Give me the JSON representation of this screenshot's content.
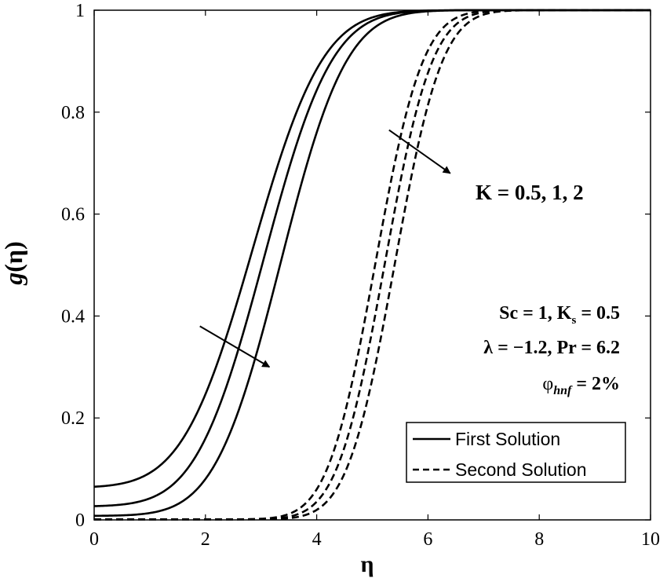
{
  "chart_data": {
    "type": "line",
    "title": "",
    "xlabel": "η",
    "ylabel_main": "g",
    "ylabel_arg": "(η)",
    "xlim": [
      0,
      10
    ],
    "ylim": [
      0,
      1
    ],
    "xticks": [
      0,
      2,
      4,
      6,
      8,
      10
    ],
    "yticks": [
      0,
      0.2,
      0.4,
      0.6,
      0.8,
      1
    ],
    "ytick_labels": [
      "0",
      "0.2",
      "0.4",
      "0.6",
      "0.8",
      "1"
    ],
    "series": [
      {
        "name": "First Solution, K = 0.5",
        "style": "solid",
        "g0": 0.065,
        "mid": 2.85,
        "width": 0.62
      },
      {
        "name": "First Solution, K = 1",
        "style": "solid",
        "g0": 0.027,
        "mid": 3.05,
        "width": 0.6
      },
      {
        "name": "First Solution, K = 2",
        "style": "solid",
        "g0": 0.008,
        "mid": 3.35,
        "width": 0.58
      },
      {
        "name": "Second Solution, K = 0.5",
        "style": "dashed",
        "g0": 0.001,
        "mid": 5.05,
        "width": 0.42
      },
      {
        "name": "Second Solution, K = 1",
        "style": "dashed",
        "g0": 0.001,
        "mid": 5.22,
        "width": 0.42
      },
      {
        "name": "Second Solution, K = 2",
        "style": "dashed",
        "g0": 0.001,
        "mid": 5.4,
        "width": 0.42
      }
    ],
    "legend": {
      "position": "bottom-right",
      "entries": [
        {
          "label": "First Solution",
          "style": "solid"
        },
        {
          "label": "Second Solution",
          "style": "dashed"
        }
      ]
    },
    "annotations": {
      "k_label": "K = 0.5, 1, 2",
      "sc_ks": {
        "left": "Sc = 1, K",
        "sub": "s",
        "right": " = 0.5"
      },
      "lambda_pr": "λ = −1.2, Pr = 6.2",
      "phi": {
        "symbol": "φ",
        "sub": "hnf",
        "right": " = 2%"
      }
    },
    "arrows": [
      {
        "from": [
          1.9,
          0.38
        ],
        "to": [
          3.15,
          0.3
        ]
      },
      {
        "from": [
          5.3,
          0.765
        ],
        "to": [
          6.4,
          0.68
        ]
      }
    ]
  }
}
